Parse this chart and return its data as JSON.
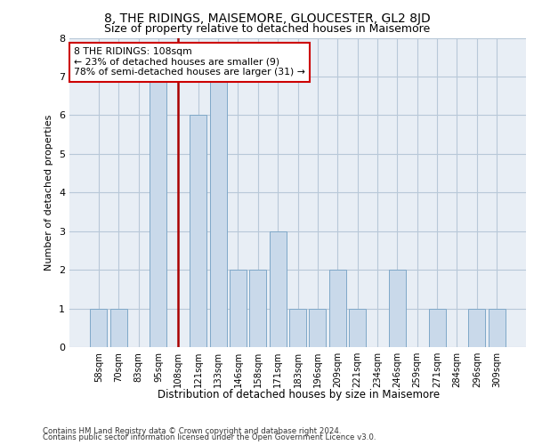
{
  "title": "8, THE RIDINGS, MAISEMORE, GLOUCESTER, GL2 8JD",
  "subtitle": "Size of property relative to detached houses in Maisemore",
  "xlabel": "Distribution of detached houses by size in Maisemore",
  "ylabel": "Number of detached properties",
  "categories": [
    "58sqm",
    "70sqm",
    "83sqm",
    "95sqm",
    "108sqm",
    "121sqm",
    "133sqm",
    "146sqm",
    "158sqm",
    "171sqm",
    "183sqm",
    "196sqm",
    "209sqm",
    "221sqm",
    "234sqm",
    "246sqm",
    "259sqm",
    "271sqm",
    "284sqm",
    "296sqm",
    "309sqm"
  ],
  "values": [
    1,
    1,
    0,
    7,
    0,
    6,
    7,
    2,
    2,
    3,
    1,
    1,
    2,
    1,
    0,
    2,
    0,
    1,
    0,
    1,
    1
  ],
  "bar_color": "#c9d9ea",
  "bar_edge_color": "#7fa8c8",
  "highlight_bar_index": 4,
  "highlight_line_color": "#aa0000",
  "annotation_text": "8 THE RIDINGS: 108sqm\n← 23% of detached houses are smaller (9)\n78% of semi-detached houses are larger (31) →",
  "annotation_box_color": "#ffffff",
  "annotation_box_edge": "#cc0000",
  "ylim": [
    0,
    8
  ],
  "yticks": [
    0,
    1,
    2,
    3,
    4,
    5,
    6,
    7,
    8
  ],
  "grid_color": "#b8c8d8",
  "background_color": "#e8eef5",
  "footer_line1": "Contains HM Land Registry data © Crown copyright and database right 2024.",
  "footer_line2": "Contains public sector information licensed under the Open Government Licence v3.0."
}
